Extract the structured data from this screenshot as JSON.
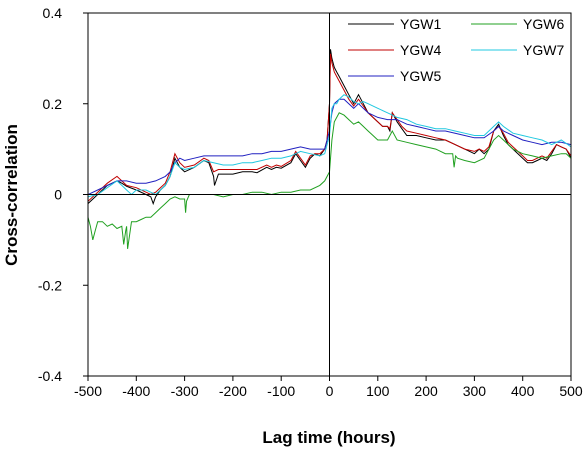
{
  "chart_data": {
    "type": "line",
    "title": "",
    "xlabel": "Lag time (hours)",
    "ylabel": "Cross-correlation",
    "xlim": [
      -500,
      500
    ],
    "ylim": [
      -0.4,
      0.4
    ],
    "xticks": [
      -500,
      -400,
      -300,
      -200,
      -100,
      0,
      100,
      200,
      300,
      400,
      500
    ],
    "yticks": [
      -0.4,
      -0.2,
      0,
      0.2,
      0.4
    ],
    "xtick_labels": [
      "-500",
      "-400",
      "-300",
      "-200",
      "-100",
      "0",
      "100",
      "200",
      "300",
      "400",
      "500"
    ],
    "ytick_labels": [
      "-0.4",
      "-0.2",
      "0",
      "0.2",
      "0.4"
    ],
    "zero_lines": true,
    "grid": false,
    "legend_position": "top-right",
    "series": [
      {
        "name": "YGW1",
        "color": "#000000",
        "x": [
          -500,
          -480,
          -460,
          -440,
          -430,
          -420,
          -400,
          -380,
          -370,
          -365,
          -360,
          -350,
          -340,
          -330,
          -320,
          -310,
          -300,
          -280,
          -260,
          -250,
          -240,
          -238,
          -230,
          -200,
          -180,
          -160,
          -150,
          -130,
          -120,
          -110,
          -100,
          -80,
          -70,
          -60,
          -50,
          -40,
          -30,
          -20,
          -10,
          -5,
          0,
          2,
          5,
          10,
          15,
          20,
          30,
          40,
          50,
          60,
          70,
          80,
          90,
          100,
          110,
          120,
          125,
          130,
          140,
          150,
          160,
          180,
          200,
          220,
          240,
          260,
          280,
          300,
          310,
          320,
          330,
          340,
          350,
          360,
          370,
          380,
          390,
          400,
          410,
          420,
          430,
          440,
          450,
          460,
          470,
          480,
          490,
          500
        ],
        "y": [
          -0.02,
          0.0,
          0.02,
          0.03,
          0.025,
          0.018,
          0.01,
          0.0,
          -0.005,
          -0.02,
          -0.005,
          0.01,
          0.02,
          0.04,
          0.08,
          0.06,
          0.05,
          0.06,
          0.075,
          0.07,
          0.04,
          0.02,
          0.045,
          0.045,
          0.05,
          0.05,
          0.048,
          0.06,
          0.055,
          0.06,
          0.058,
          0.07,
          0.09,
          0.075,
          0.06,
          0.08,
          0.09,
          0.085,
          0.1,
          0.12,
          0.2,
          0.32,
          0.3,
          0.28,
          0.27,
          0.26,
          0.24,
          0.22,
          0.2,
          0.22,
          0.2,
          0.18,
          0.17,
          0.16,
          0.15,
          0.15,
          0.14,
          0.18,
          0.16,
          0.145,
          0.13,
          0.13,
          0.125,
          0.12,
          0.12,
          0.11,
          0.1,
          0.09,
          0.1,
          0.09,
          0.1,
          0.14,
          0.155,
          0.13,
          0.11,
          0.1,
          0.09,
          0.08,
          0.07,
          0.07,
          0.075,
          0.08,
          0.075,
          0.09,
          0.11,
          0.105,
          0.1,
          0.08
        ]
      },
      {
        "name": "YGW4",
        "color": "#c00000",
        "x": [
          -500,
          -480,
          -460,
          -440,
          -430,
          -420,
          -400,
          -380,
          -370,
          -360,
          -350,
          -340,
          -330,
          -320,
          -310,
          -300,
          -280,
          -260,
          -250,
          -240,
          -230,
          -200,
          -180,
          -160,
          -150,
          -130,
          -120,
          -110,
          -100,
          -80,
          -70,
          -60,
          -50,
          -40,
          -30,
          -20,
          -10,
          -5,
          0,
          2,
          5,
          10,
          15,
          20,
          30,
          40,
          50,
          60,
          70,
          80,
          90,
          100,
          110,
          120,
          125,
          130,
          140,
          150,
          160,
          180,
          200,
          220,
          240,
          260,
          280,
          300,
          310,
          320,
          330,
          340,
          350,
          360,
          370,
          380,
          390,
          400,
          410,
          420,
          430,
          440,
          450,
          460,
          470,
          480,
          490,
          500
        ],
        "y": [
          -0.015,
          0.005,
          0.025,
          0.04,
          0.03,
          0.02,
          0.015,
          0.005,
          0.0,
          0.005,
          0.015,
          0.025,
          0.05,
          0.09,
          0.07,
          0.06,
          0.065,
          0.08,
          0.075,
          0.05,
          0.055,
          0.055,
          0.055,
          0.055,
          0.055,
          0.065,
          0.06,
          0.065,
          0.062,
          0.075,
          0.095,
          0.08,
          0.065,
          0.085,
          0.09,
          0.09,
          0.1,
          0.12,
          0.2,
          0.31,
          0.29,
          0.27,
          0.26,
          0.25,
          0.23,
          0.21,
          0.195,
          0.21,
          0.195,
          0.18,
          0.17,
          0.16,
          0.15,
          0.15,
          0.145,
          0.18,
          0.165,
          0.15,
          0.14,
          0.135,
          0.13,
          0.125,
          0.12,
          0.11,
          0.1,
          0.095,
          0.1,
          0.095,
          0.105,
          0.14,
          0.15,
          0.135,
          0.115,
          0.105,
          0.095,
          0.085,
          0.075,
          0.075,
          0.08,
          0.085,
          0.08,
          0.095,
          0.11,
          0.105,
          0.1,
          0.085
        ]
      },
      {
        "name": "YGW5",
        "color": "#2020c0",
        "x": [
          -500,
          -480,
          -460,
          -440,
          -420,
          -400,
          -380,
          -360,
          -340,
          -330,
          -320,
          -310,
          -300,
          -280,
          -260,
          -240,
          -220,
          -200,
          -180,
          -160,
          -140,
          -120,
          -100,
          -80,
          -60,
          -40,
          -20,
          -10,
          0,
          5,
          10,
          20,
          30,
          40,
          50,
          60,
          70,
          80,
          100,
          120,
          130,
          140,
          160,
          180,
          200,
          220,
          240,
          260,
          280,
          300,
          320,
          340,
          350,
          360,
          380,
          400,
          420,
          440,
          460,
          480,
          500
        ],
        "y": [
          0.0,
          0.01,
          0.02,
          0.03,
          0.03,
          0.025,
          0.025,
          0.03,
          0.04,
          0.05,
          0.07,
          0.08,
          0.075,
          0.08,
          0.085,
          0.085,
          0.085,
          0.085,
          0.085,
          0.09,
          0.09,
          0.095,
          0.095,
          0.1,
          0.105,
          0.1,
          0.1,
          0.1,
          0.14,
          0.18,
          0.2,
          0.21,
          0.21,
          0.2,
          0.19,
          0.2,
          0.19,
          0.18,
          0.17,
          0.165,
          0.165,
          0.165,
          0.155,
          0.15,
          0.145,
          0.14,
          0.14,
          0.135,
          0.13,
          0.125,
          0.125,
          0.14,
          0.15,
          0.14,
          0.13,
          0.12,
          0.115,
          0.11,
          0.115,
          0.115,
          0.11
        ]
      },
      {
        "name": "YGW6",
        "color": "#20a020",
        "x": [
          -500,
          -495,
          -490,
          -485,
          -480,
          -470,
          -460,
          -450,
          -440,
          -430,
          -428,
          -426,
          -422,
          -420,
          -418,
          -410,
          -400,
          -390,
          -380,
          -370,
          -360,
          -350,
          -340,
          -330,
          -320,
          -310,
          -300,
          -298,
          -296,
          -290,
          -280,
          -260,
          -240,
          -220,
          -200,
          -180,
          -160,
          -140,
          -120,
          -100,
          -80,
          -60,
          -40,
          -20,
          -10,
          0,
          5,
          10,
          20,
          30,
          40,
          50,
          60,
          70,
          80,
          90,
          100,
          120,
          130,
          140,
          160,
          180,
          200,
          220,
          240,
          255,
          258,
          261,
          265,
          280,
          300,
          320,
          340,
          350,
          360,
          380,
          400,
          420,
          440,
          460,
          480,
          490,
          500
        ],
        "y": [
          -0.05,
          -0.07,
          -0.1,
          -0.08,
          -0.06,
          -0.06,
          -0.07,
          -0.065,
          -0.075,
          -0.07,
          -0.09,
          -0.11,
          -0.08,
          -0.07,
          -0.12,
          -0.06,
          -0.06,
          -0.055,
          -0.05,
          -0.05,
          -0.04,
          -0.03,
          -0.02,
          -0.01,
          -0.005,
          -0.01,
          -0.01,
          -0.04,
          -0.015,
          0.0,
          0.0,
          0.0,
          0.0,
          -0.005,
          0.0,
          0.0,
          0.005,
          0.005,
          0.0,
          0.005,
          0.005,
          0.01,
          0.01,
          0.02,
          0.03,
          0.05,
          0.12,
          0.16,
          0.18,
          0.175,
          0.165,
          0.155,
          0.16,
          0.15,
          0.14,
          0.13,
          0.12,
          0.12,
          0.14,
          0.12,
          0.115,
          0.11,
          0.105,
          0.1,
          0.09,
          0.09,
          0.06,
          0.085,
          0.08,
          0.075,
          0.07,
          0.08,
          0.12,
          0.13,
          0.12,
          0.1,
          0.09,
          0.085,
          0.08,
          0.085,
          0.09,
          0.09,
          0.08
        ]
      },
      {
        "name": "YGW7",
        "color": "#20c8e0",
        "x": [
          -500,
          -480,
          -460,
          -440,
          -430,
          -420,
          -410,
          -400,
          -380,
          -360,
          -340,
          -330,
          -320,
          -310,
          -300,
          -280,
          -260,
          -240,
          -220,
          -200,
          -180,
          -160,
          -140,
          -120,
          -100,
          -80,
          -60,
          -40,
          -20,
          -10,
          0,
          5,
          10,
          15,
          20,
          30,
          40,
          50,
          60,
          70,
          80,
          100,
          120,
          130,
          140,
          160,
          180,
          200,
          220,
          240,
          260,
          280,
          300,
          320,
          340,
          350,
          360,
          380,
          400,
          420,
          440,
          460,
          480,
          500
        ],
        "y": [
          -0.005,
          0.0,
          0.015,
          0.03,
          0.02,
          0.01,
          0.0,
          0.01,
          0.01,
          0.0,
          0.02,
          0.04,
          0.07,
          0.06,
          0.055,
          0.06,
          0.075,
          0.07,
          0.065,
          0.065,
          0.07,
          0.07,
          0.075,
          0.08,
          0.08,
          0.085,
          0.095,
          0.09,
          0.085,
          0.09,
          0.13,
          0.19,
          0.2,
          0.2,
          0.21,
          0.22,
          0.215,
          0.205,
          0.2,
          0.205,
          0.2,
          0.19,
          0.18,
          0.175,
          0.17,
          0.165,
          0.155,
          0.15,
          0.145,
          0.145,
          0.14,
          0.135,
          0.13,
          0.13,
          0.15,
          0.16,
          0.15,
          0.135,
          0.13,
          0.125,
          0.12,
          0.11,
          0.12,
          0.105
        ]
      }
    ]
  }
}
